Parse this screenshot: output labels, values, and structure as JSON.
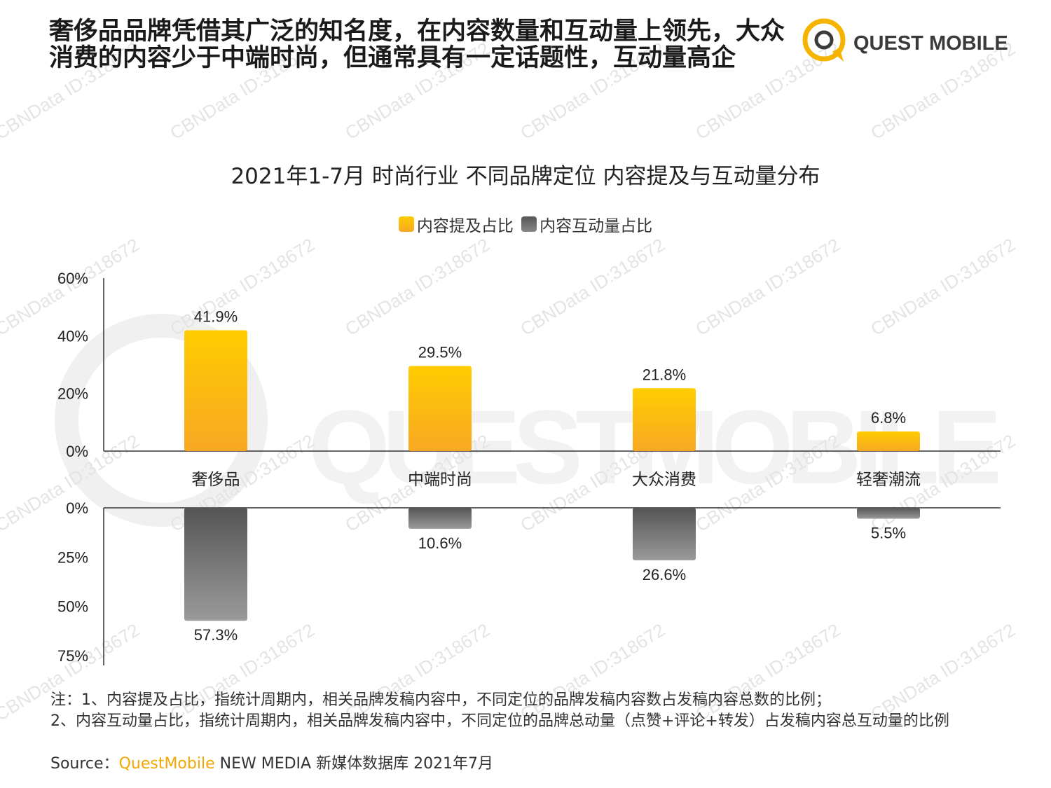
{
  "headline": "奢侈品品牌凭借其广泛的知名度，在内容数量和互动量上领先，大众消费的内容少于中端时尚，但通常具有一定话题性，互动量高企",
  "logo": {
    "text": "QUEST MOBILE",
    "icon": "quest-mobile-logo-icon"
  },
  "watermark": {
    "text": "CBNData ID:318672",
    "brand": "QUESTMOBILE"
  },
  "colors": {
    "yellow_top": "#ffcc00",
    "yellow_bottom": "#f7a823",
    "gray_top": "#555555",
    "gray_bottom": "#999999",
    "accent": "#f4a700"
  },
  "chart_data": {
    "type": "bar",
    "title": "2021年1-7月 时尚行业 不同品牌定位 内容提及与互动量分布",
    "categories": [
      "奢侈品",
      "中端时尚",
      "大众消费",
      "轻奢潮流"
    ],
    "series": [
      {
        "name": "内容提及占比",
        "values": [
          41.9,
          29.5,
          21.8,
          6.8
        ],
        "labels": [
          "41.9%",
          "29.5%",
          "21.8%",
          "6.8%"
        ],
        "color": "#ffc400"
      },
      {
        "name": "内容互动量占比",
        "values": [
          57.3,
          10.6,
          26.6,
          5.5
        ],
        "labels": [
          "57.3%",
          "10.6%",
          "26.6%",
          "5.5%"
        ],
        "color": "#666666"
      }
    ],
    "top_axis": {
      "ticks": [
        "60%",
        "40%",
        "20%",
        "0%"
      ],
      "tick_values": [
        60,
        40,
        20,
        0
      ],
      "ylim": [
        0,
        60
      ]
    },
    "bottom_axis": {
      "ticks": [
        "0%",
        "25%",
        "50%",
        "75%"
      ],
      "tick_values": [
        0,
        25,
        50,
        75
      ],
      "ylim": [
        0,
        75
      ]
    },
    "legend_position": "top-center",
    "grid": false
  },
  "notes": {
    "line1": "注：1、内容提及占比，指统计周期内，相关品牌发稿内容中，不同定位的品牌发稿内容数占发稿内容总数的比例；",
    "line2": "2、内容互动量占比，指统计周期内，相关品牌发稿内容中，不同定位的品牌总动量（点赞+评论+转发）占发稿内容总互动量的比例"
  },
  "source": {
    "prefix": "Source：",
    "brand": "QuestMobile",
    "rest": " NEW MEDIA 新媒体数据库 2021年7月"
  }
}
